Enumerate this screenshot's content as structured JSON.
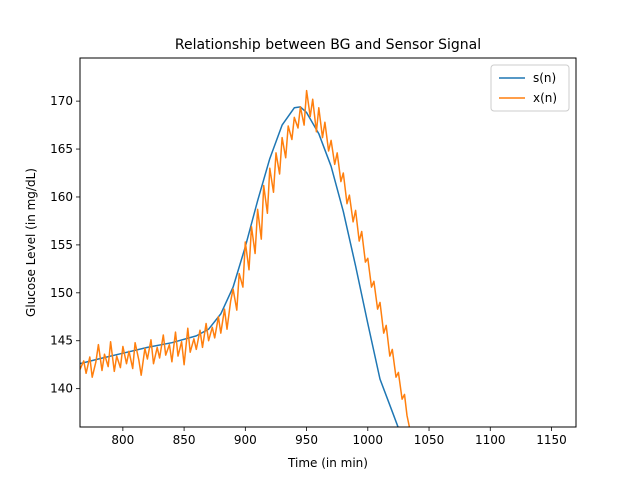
{
  "chart_data": {
    "type": "line",
    "title": "Relationship between BG and Sensor Signal",
    "xlabel": "Time (in min)",
    "ylabel": "Glucose Level (in mg/dL)",
    "xlim": [
      765,
      1170
    ],
    "ylim": [
      136,
      174.5
    ],
    "xticks": [
      800,
      850,
      900,
      950,
      1000,
      1050,
      1100,
      1150
    ],
    "yticks": [
      140,
      145,
      150,
      155,
      160,
      165,
      170
    ],
    "grid": false,
    "legend_position": "top-right",
    "series": [
      {
        "name": "s(n)",
        "color": "#1f77b4",
        "points": [
          [
            765,
            142.6
          ],
          [
            780,
            143.1
          ],
          [
            800,
            143.7
          ],
          [
            820,
            144.3
          ],
          [
            840,
            144.8
          ],
          [
            860,
            145.5
          ],
          [
            870,
            146.2
          ],
          [
            880,
            147.8
          ],
          [
            890,
            150.6
          ],
          [
            900,
            154.8
          ],
          [
            910,
            159.6
          ],
          [
            920,
            164.0
          ],
          [
            930,
            167.5
          ],
          [
            940,
            169.3
          ],
          [
            945,
            169.4
          ],
          [
            950,
            168.8
          ],
          [
            960,
            166.6
          ],
          [
            970,
            163.2
          ],
          [
            980,
            158.5
          ],
          [
            990,
            152.8
          ],
          [
            1000,
            146.8
          ],
          [
            1010,
            141.0
          ],
          [
            1020,
            137.6
          ],
          [
            1027,
            135.2
          ]
        ]
      },
      {
        "name": "x(n)",
        "color": "#ff7f0e",
        "points": [
          [
            765,
            142.0
          ],
          [
            768,
            142.9
          ],
          [
            770,
            141.6
          ],
          [
            773,
            143.3
          ],
          [
            775,
            141.2
          ],
          [
            778,
            142.8
          ],
          [
            780,
            144.6
          ],
          [
            783,
            141.9
          ],
          [
            785,
            143.6
          ],
          [
            788,
            142.3
          ],
          [
            790,
            144.9
          ],
          [
            793,
            141.8
          ],
          [
            795,
            143.4
          ],
          [
            798,
            142.2
          ],
          [
            800,
            144.4
          ],
          [
            803,
            142.6
          ],
          [
            805,
            143.9
          ],
          [
            808,
            142.1
          ],
          [
            810,
            144.8
          ],
          [
            813,
            143.0
          ],
          [
            815,
            141.4
          ],
          [
            818,
            144.2
          ],
          [
            820,
            143.1
          ],
          [
            823,
            145.1
          ],
          [
            825,
            142.6
          ],
          [
            828,
            144.3
          ],
          [
            830,
            143.2
          ],
          [
            833,
            145.6
          ],
          [
            835,
            143.5
          ],
          [
            838,
            144.6
          ],
          [
            840,
            142.8
          ],
          [
            843,
            145.9
          ],
          [
            845,
            143.4
          ],
          [
            848,
            144.9
          ],
          [
            850,
            142.5
          ],
          [
            853,
            146.3
          ],
          [
            855,
            143.8
          ],
          [
            858,
            145.2
          ],
          [
            860,
            144.1
          ],
          [
            863,
            146.1
          ],
          [
            865,
            144.3
          ],
          [
            868,
            146.8
          ],
          [
            870,
            145.0
          ],
          [
            873,
            146.4
          ],
          [
            875,
            145.3
          ],
          [
            878,
            147.5
          ],
          [
            880,
            145.8
          ],
          [
            883,
            148.3
          ],
          [
            885,
            146.2
          ],
          [
            888,
            149.1
          ],
          [
            890,
            150.4
          ],
          [
            893,
            148.2
          ],
          [
            895,
            152.0
          ],
          [
            898,
            150.6
          ],
          [
            900,
            155.3
          ],
          [
            903,
            152.4
          ],
          [
            905,
            156.9
          ],
          [
            908,
            154.1
          ],
          [
            910,
            158.7
          ],
          [
            913,
            155.6
          ],
          [
            915,
            161.2
          ],
          [
            918,
            158.3
          ],
          [
            920,
            163.0
          ],
          [
            923,
            160.5
          ],
          [
            925,
            164.6
          ],
          [
            928,
            162.4
          ],
          [
            930,
            166.2
          ],
          [
            933,
            164.1
          ],
          [
            935,
            167.4
          ],
          [
            938,
            166.0
          ],
          [
            940,
            168.3
          ],
          [
            943,
            167.2
          ],
          [
            945,
            169.4
          ],
          [
            948,
            167.5
          ],
          [
            950,
            171.1
          ],
          [
            953,
            168.4
          ],
          [
            955,
            170.2
          ],
          [
            958,
            166.8
          ],
          [
            960,
            169.3
          ],
          [
            963,
            166.2
          ],
          [
            965,
            167.8
          ],
          [
            968,
            164.8
          ],
          [
            970,
            165.9
          ],
          [
            973,
            163.4
          ],
          [
            975,
            164.6
          ],
          [
            978,
            161.6
          ],
          [
            980,
            162.5
          ],
          [
            983,
            159.3
          ],
          [
            985,
            160.2
          ],
          [
            988,
            157.4
          ],
          [
            990,
            158.6
          ],
          [
            993,
            155.4
          ],
          [
            995,
            156.4
          ],
          [
            998,
            153.2
          ],
          [
            1000,
            153.6
          ],
          [
            1003,
            150.6
          ],
          [
            1005,
            151.2
          ],
          [
            1008,
            148.3
          ],
          [
            1010,
            149.0
          ],
          [
            1013,
            145.8
          ],
          [
            1015,
            146.6
          ],
          [
            1018,
            143.4
          ],
          [
            1020,
            144.1
          ],
          [
            1023,
            141.2
          ],
          [
            1025,
            141.7
          ],
          [
            1028,
            138.9
          ],
          [
            1030,
            139.4
          ],
          [
            1032,
            137.2
          ],
          [
            1034,
            136.0
          ]
        ]
      }
    ]
  }
}
